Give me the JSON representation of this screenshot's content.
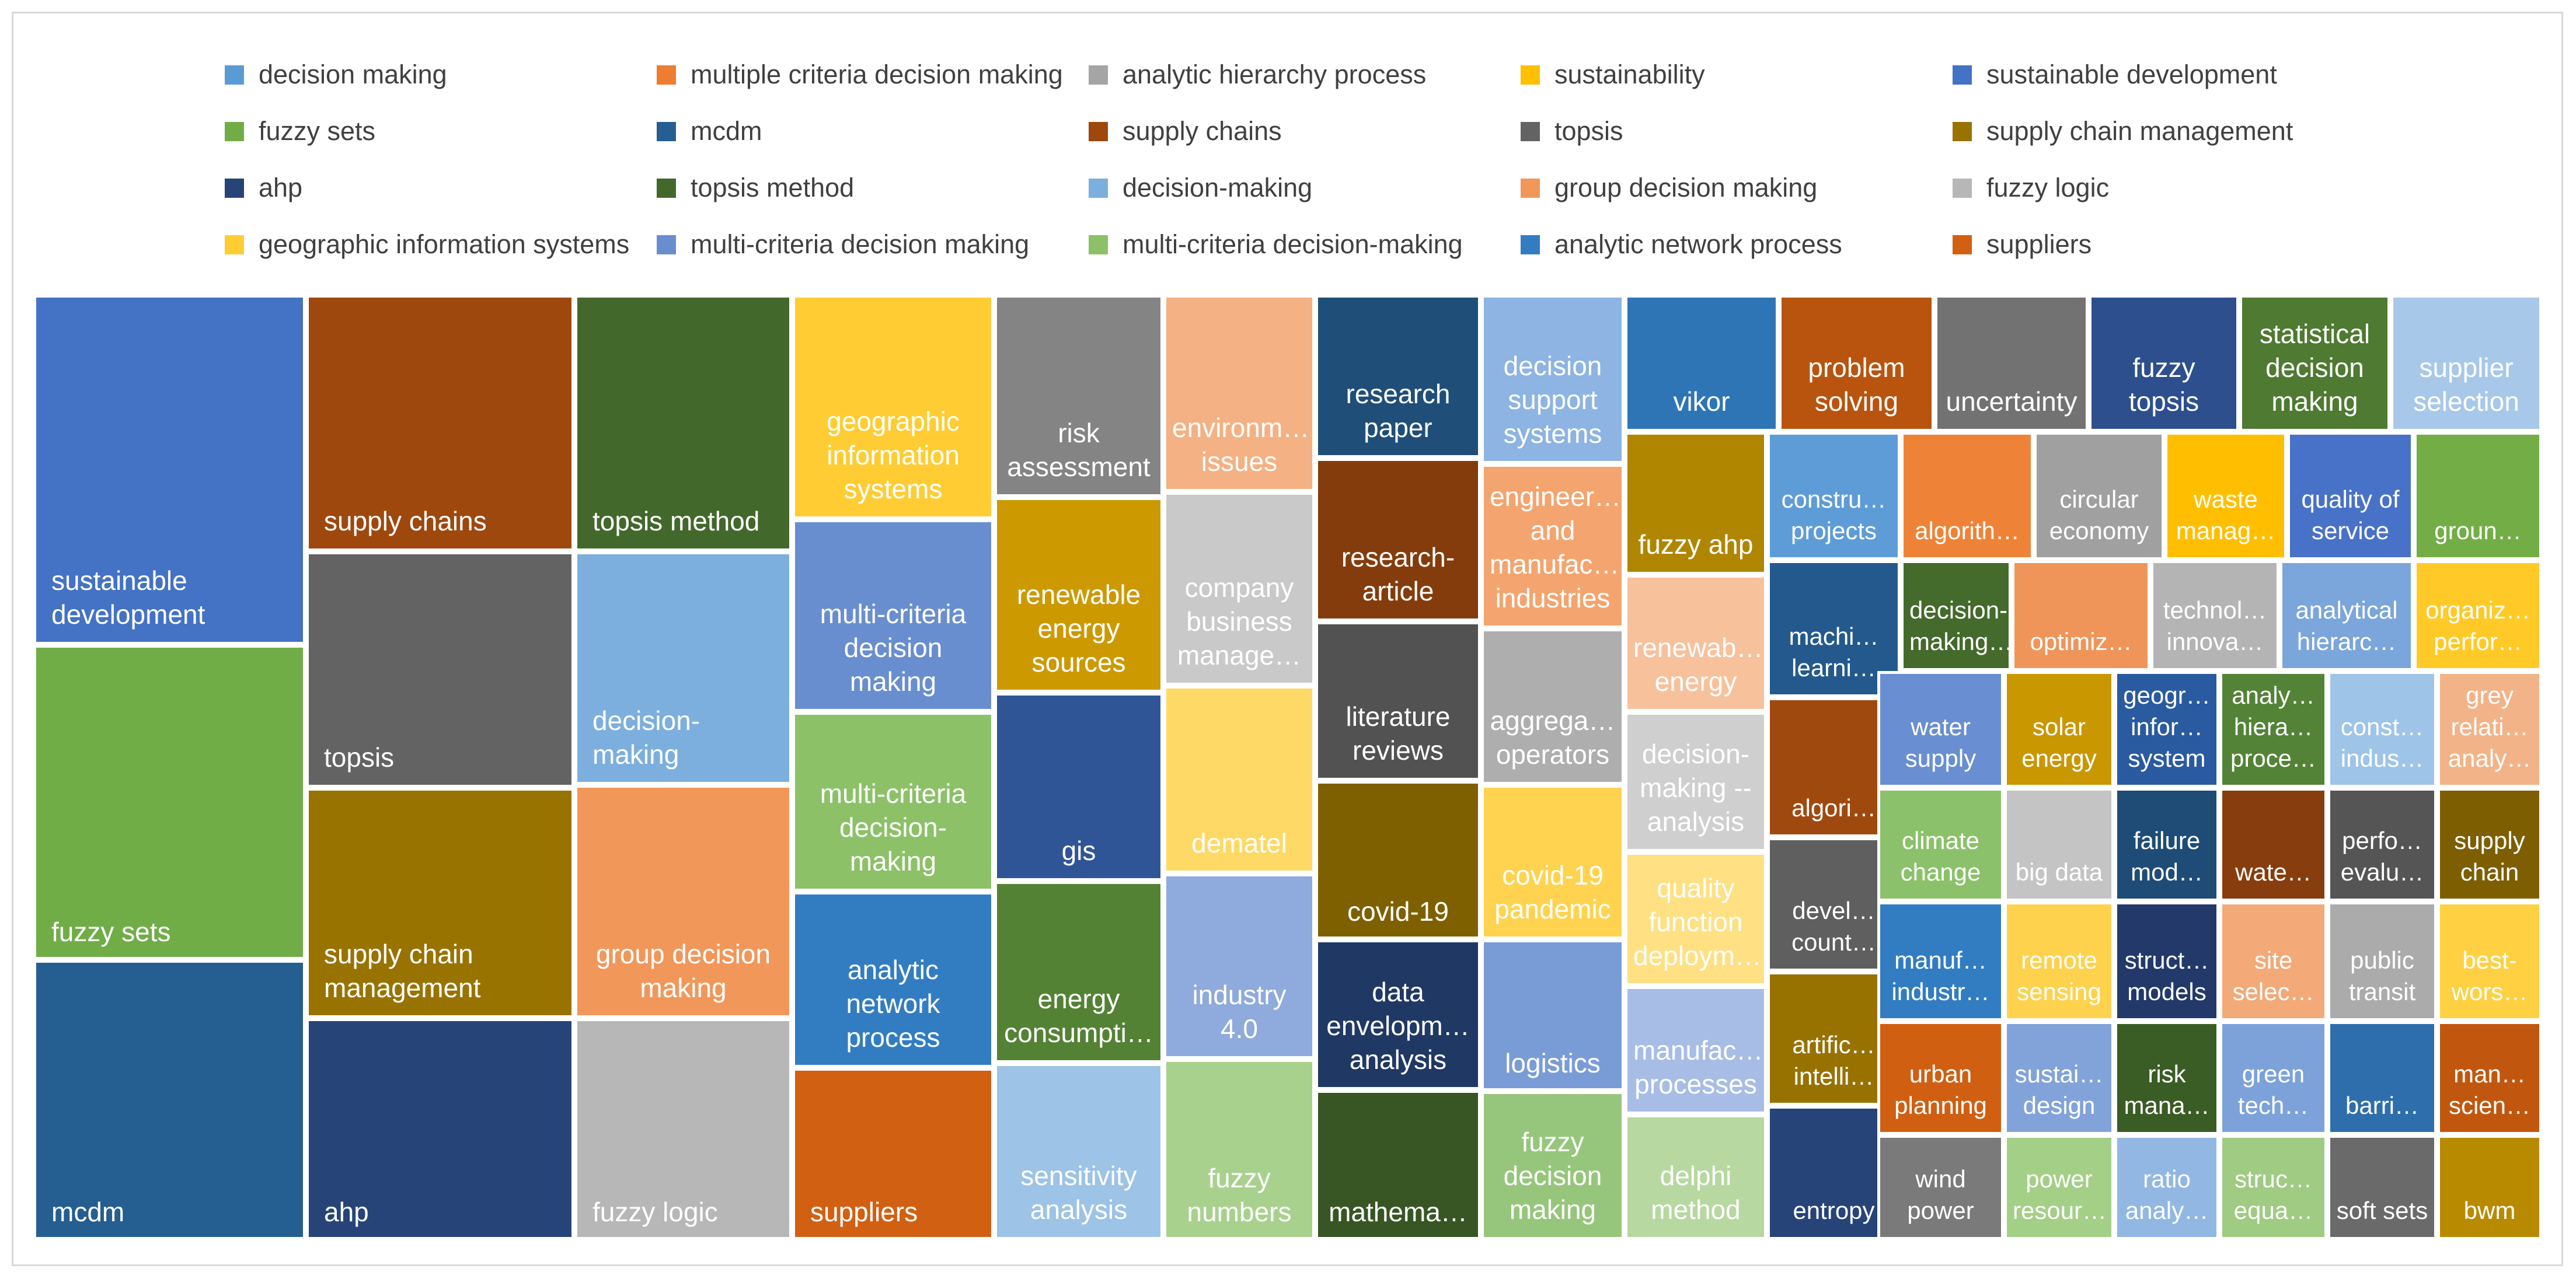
{
  "chart_data": {
    "type": "treemap",
    "legend": [
      {
        "name": "decision making",
        "color": "#5B9BD5"
      },
      {
        "name": "multiple criteria decision making",
        "color": "#ED7D31"
      },
      {
        "name": "analytic hierarchy process",
        "color": "#A5A5A5"
      },
      {
        "name": "sustainability",
        "color": "#FFC000"
      },
      {
        "name": "sustainable development",
        "color": "#4472C4"
      },
      {
        "name": "fuzzy sets",
        "color": "#70AD47"
      },
      {
        "name": "mcdm",
        "color": "#255E91"
      },
      {
        "name": "supply chains",
        "color": "#9E480E"
      },
      {
        "name": "topsis",
        "color": "#636363"
      },
      {
        "name": "supply chain management",
        "color": "#997300"
      },
      {
        "name": "ahp",
        "color": "#264478"
      },
      {
        "name": "topsis method",
        "color": "#43682B"
      },
      {
        "name": "decision-making",
        "color": "#7CAFDD"
      },
      {
        "name": "group decision making",
        "color": "#F1975A"
      },
      {
        "name": "fuzzy logic",
        "color": "#B7B7B7"
      },
      {
        "name": "geographic information systems",
        "color": "#FFCD33"
      },
      {
        "name": "multi-criteria decision making",
        "color": "#698ED0"
      },
      {
        "name": "multi-criteria decision-making",
        "color": "#8CC168"
      },
      {
        "name": "analytic network process",
        "color": "#327DC2"
      },
      {
        "name": "suppliers",
        "color": "#D26012"
      }
    ],
    "tiles": [
      {
        "label": "sustainable development",
        "color": "#4472C4"
      },
      {
        "label": "fuzzy sets",
        "color": "#70AD47"
      },
      {
        "label": "mcdm",
        "color": "#255E91"
      },
      {
        "label": "supply chains",
        "color": "#9E480E"
      },
      {
        "label": "topsis",
        "color": "#636363"
      },
      {
        "label": "supply chain management",
        "color": "#997300"
      },
      {
        "label": "ahp",
        "color": "#264478"
      },
      {
        "label": "topsis method",
        "color": "#43682B"
      },
      {
        "label": "decision-making",
        "color": "#7CAFDD"
      },
      {
        "label": "group decision making",
        "color": "#F1975A"
      },
      {
        "label": "fuzzy logic",
        "color": "#B7B7B7"
      },
      {
        "label": "geographic information systems",
        "color": "#FFCD33"
      },
      {
        "label": "multi-criteria decision making",
        "color": "#698ED0"
      },
      {
        "label": "multi-criteria decision-making",
        "color": "#8CC168"
      },
      {
        "label": "analytic network process",
        "color": "#327DC2"
      },
      {
        "label": "suppliers",
        "color": "#D26012"
      },
      {
        "label": "risk assessment",
        "color": "#848484"
      },
      {
        "label": "renewable energy sources",
        "color": "#CC9A00"
      },
      {
        "label": "gis",
        "color": "#2F5597"
      },
      {
        "label": "energy consumpti…",
        "color": "#548235"
      },
      {
        "label": "sensitivity analysis",
        "color": "#9DC3E6"
      },
      {
        "label": "environm… issues",
        "color": "#F4B183"
      },
      {
        "label": "company business manage…",
        "color": "#C9C9C9"
      },
      {
        "label": "dematel",
        "color": "#FFD966"
      },
      {
        "label": "industry 4.0",
        "color": "#8FAADC"
      },
      {
        "label": "fuzzy numbers",
        "color": "#A9D18E"
      },
      {
        "label": "research paper",
        "color": "#1F4E79"
      },
      {
        "label": "research-article",
        "color": "#843C0C"
      },
      {
        "label": "literature reviews",
        "color": "#525252"
      },
      {
        "label": "covid-19",
        "color": "#7F6000"
      },
      {
        "label": "data envelopm… analysis",
        "color": "#203864"
      },
      {
        "label": "mathema…",
        "color": "#375623"
      },
      {
        "label": "decision support systems",
        "color": "#8DB4E2"
      },
      {
        "label": "engineer… and manufac… industries",
        "color": "#F4A46E"
      },
      {
        "label": "aggrega… operators",
        "color": "#AEAEAE"
      },
      {
        "label": "covid-19 pandemic",
        "color": "#FFD34F"
      },
      {
        "label": "logistics",
        "color": "#7A9CD6"
      },
      {
        "label": "fuzzy decision making",
        "color": "#96C67B"
      },
      {
        "label": "vikor",
        "color": "#2E75B6"
      },
      {
        "label": "fuzzy ahp",
        "color": "#B08600"
      },
      {
        "label": "renewab… energy",
        "color": "#F7C19C"
      },
      {
        "label": "decision-making -- analysis",
        "color": "#CFCFCF"
      },
      {
        "label": "quality function deploym…",
        "color": "#FFE083"
      },
      {
        "label": "manufac… processes",
        "color": "#A7BDE6"
      },
      {
        "label": "delphi method",
        "color": "#B7D8A1"
      },
      {
        "label": "problem solving",
        "color": "#B9540F"
      },
      {
        "label": "uncertainty",
        "color": "#727272"
      },
      {
        "label": "fuzzy topsis",
        "color": "#2D4F8E"
      },
      {
        "label": "statistical decision making",
        "color": "#4E7A31"
      },
      {
        "label": "supplier selection",
        "color": "#A8C8EA"
      },
      {
        "label": "constru… projects",
        "color": "#5E9CD8"
      },
      {
        "label": "algorith…",
        "color": "#EE8338"
      },
      {
        "label": "circular economy",
        "color": "#A0A0A0"
      },
      {
        "label": "waste manag…",
        "color": "#FFBF00"
      },
      {
        "label": "quality of service",
        "color": "#4872C8"
      },
      {
        "label": "groun…",
        "color": "#72AE45"
      },
      {
        "label": "machi… learni…",
        "color": "#24598D"
      },
      {
        "label": "decision-making…",
        "color": "#446A2C"
      },
      {
        "label": "optimiz…",
        "color": "#F0955A"
      },
      {
        "label": "technol… innova…",
        "color": "#B4B4B4"
      },
      {
        "label": "analytical hierarc…",
        "color": "#7BA6DB"
      },
      {
        "label": "organiz… perfor…",
        "color": "#FFCA28"
      },
      {
        "label": "algori…",
        "color": "#A0490F"
      },
      {
        "label": "water supply",
        "color": "#698FD2"
      },
      {
        "label": "solar energy",
        "color": "#C99700"
      },
      {
        "label": "geogr… infor… system",
        "color": "#2A5AA0"
      },
      {
        "label": "analy… hiera… proce…",
        "color": "#538336"
      },
      {
        "label": "const… indus…",
        "color": "#9EC5E8"
      },
      {
        "label": "grey relati… analy…",
        "color": "#F3B388"
      },
      {
        "label": "devel… count…",
        "color": "#5F5F5F"
      },
      {
        "label": "climate change",
        "color": "#8BC16A"
      },
      {
        "label": "big data",
        "color": "#C4C4C4"
      },
      {
        "label": "failure mod…",
        "color": "#1E4C76"
      },
      {
        "label": "wate…",
        "color": "#873D0D"
      },
      {
        "label": "perfo… evalu…",
        "color": "#555555"
      },
      {
        "label": "supply chain",
        "color": "#7D5E00"
      },
      {
        "label": "artific… intelli…",
        "color": "#987200"
      },
      {
        "label": "manuf… industr…",
        "color": "#327DC2"
      },
      {
        "label": "remote sensing",
        "color": "#FFD24D"
      },
      {
        "label": "struct… models",
        "color": "#22396A"
      },
      {
        "label": "site selec…",
        "color": "#F3A978"
      },
      {
        "label": "public transit",
        "color": "#ABABAB"
      },
      {
        "label": "best-wors…",
        "color": "#FFD142"
      },
      {
        "label": "entropy",
        "color": "#264478"
      },
      {
        "label": "urban planning",
        "color": "#D05F12"
      },
      {
        "label": "sustai… design",
        "color": "#82A3D9"
      },
      {
        "label": "risk mana…",
        "color": "#3A5C25"
      },
      {
        "label": "green tech…",
        "color": "#7DA2DA"
      },
      {
        "label": "barri…",
        "color": "#2F6EAC"
      },
      {
        "label": "man… scien…",
        "color": "#C1570E"
      },
      {
        "label": "wind power",
        "color": "#7A7A7A"
      },
      {
        "label": "power resour…",
        "color": "#A4CF87"
      },
      {
        "label": "ratio analy…",
        "color": "#92B7E3"
      },
      {
        "label": "struc… equa…",
        "color": "#9FCB83"
      },
      {
        "label": "soft sets",
        "color": "#6A6A6A"
      },
      {
        "label": "bwm",
        "color": "#B88A00"
      }
    ]
  }
}
